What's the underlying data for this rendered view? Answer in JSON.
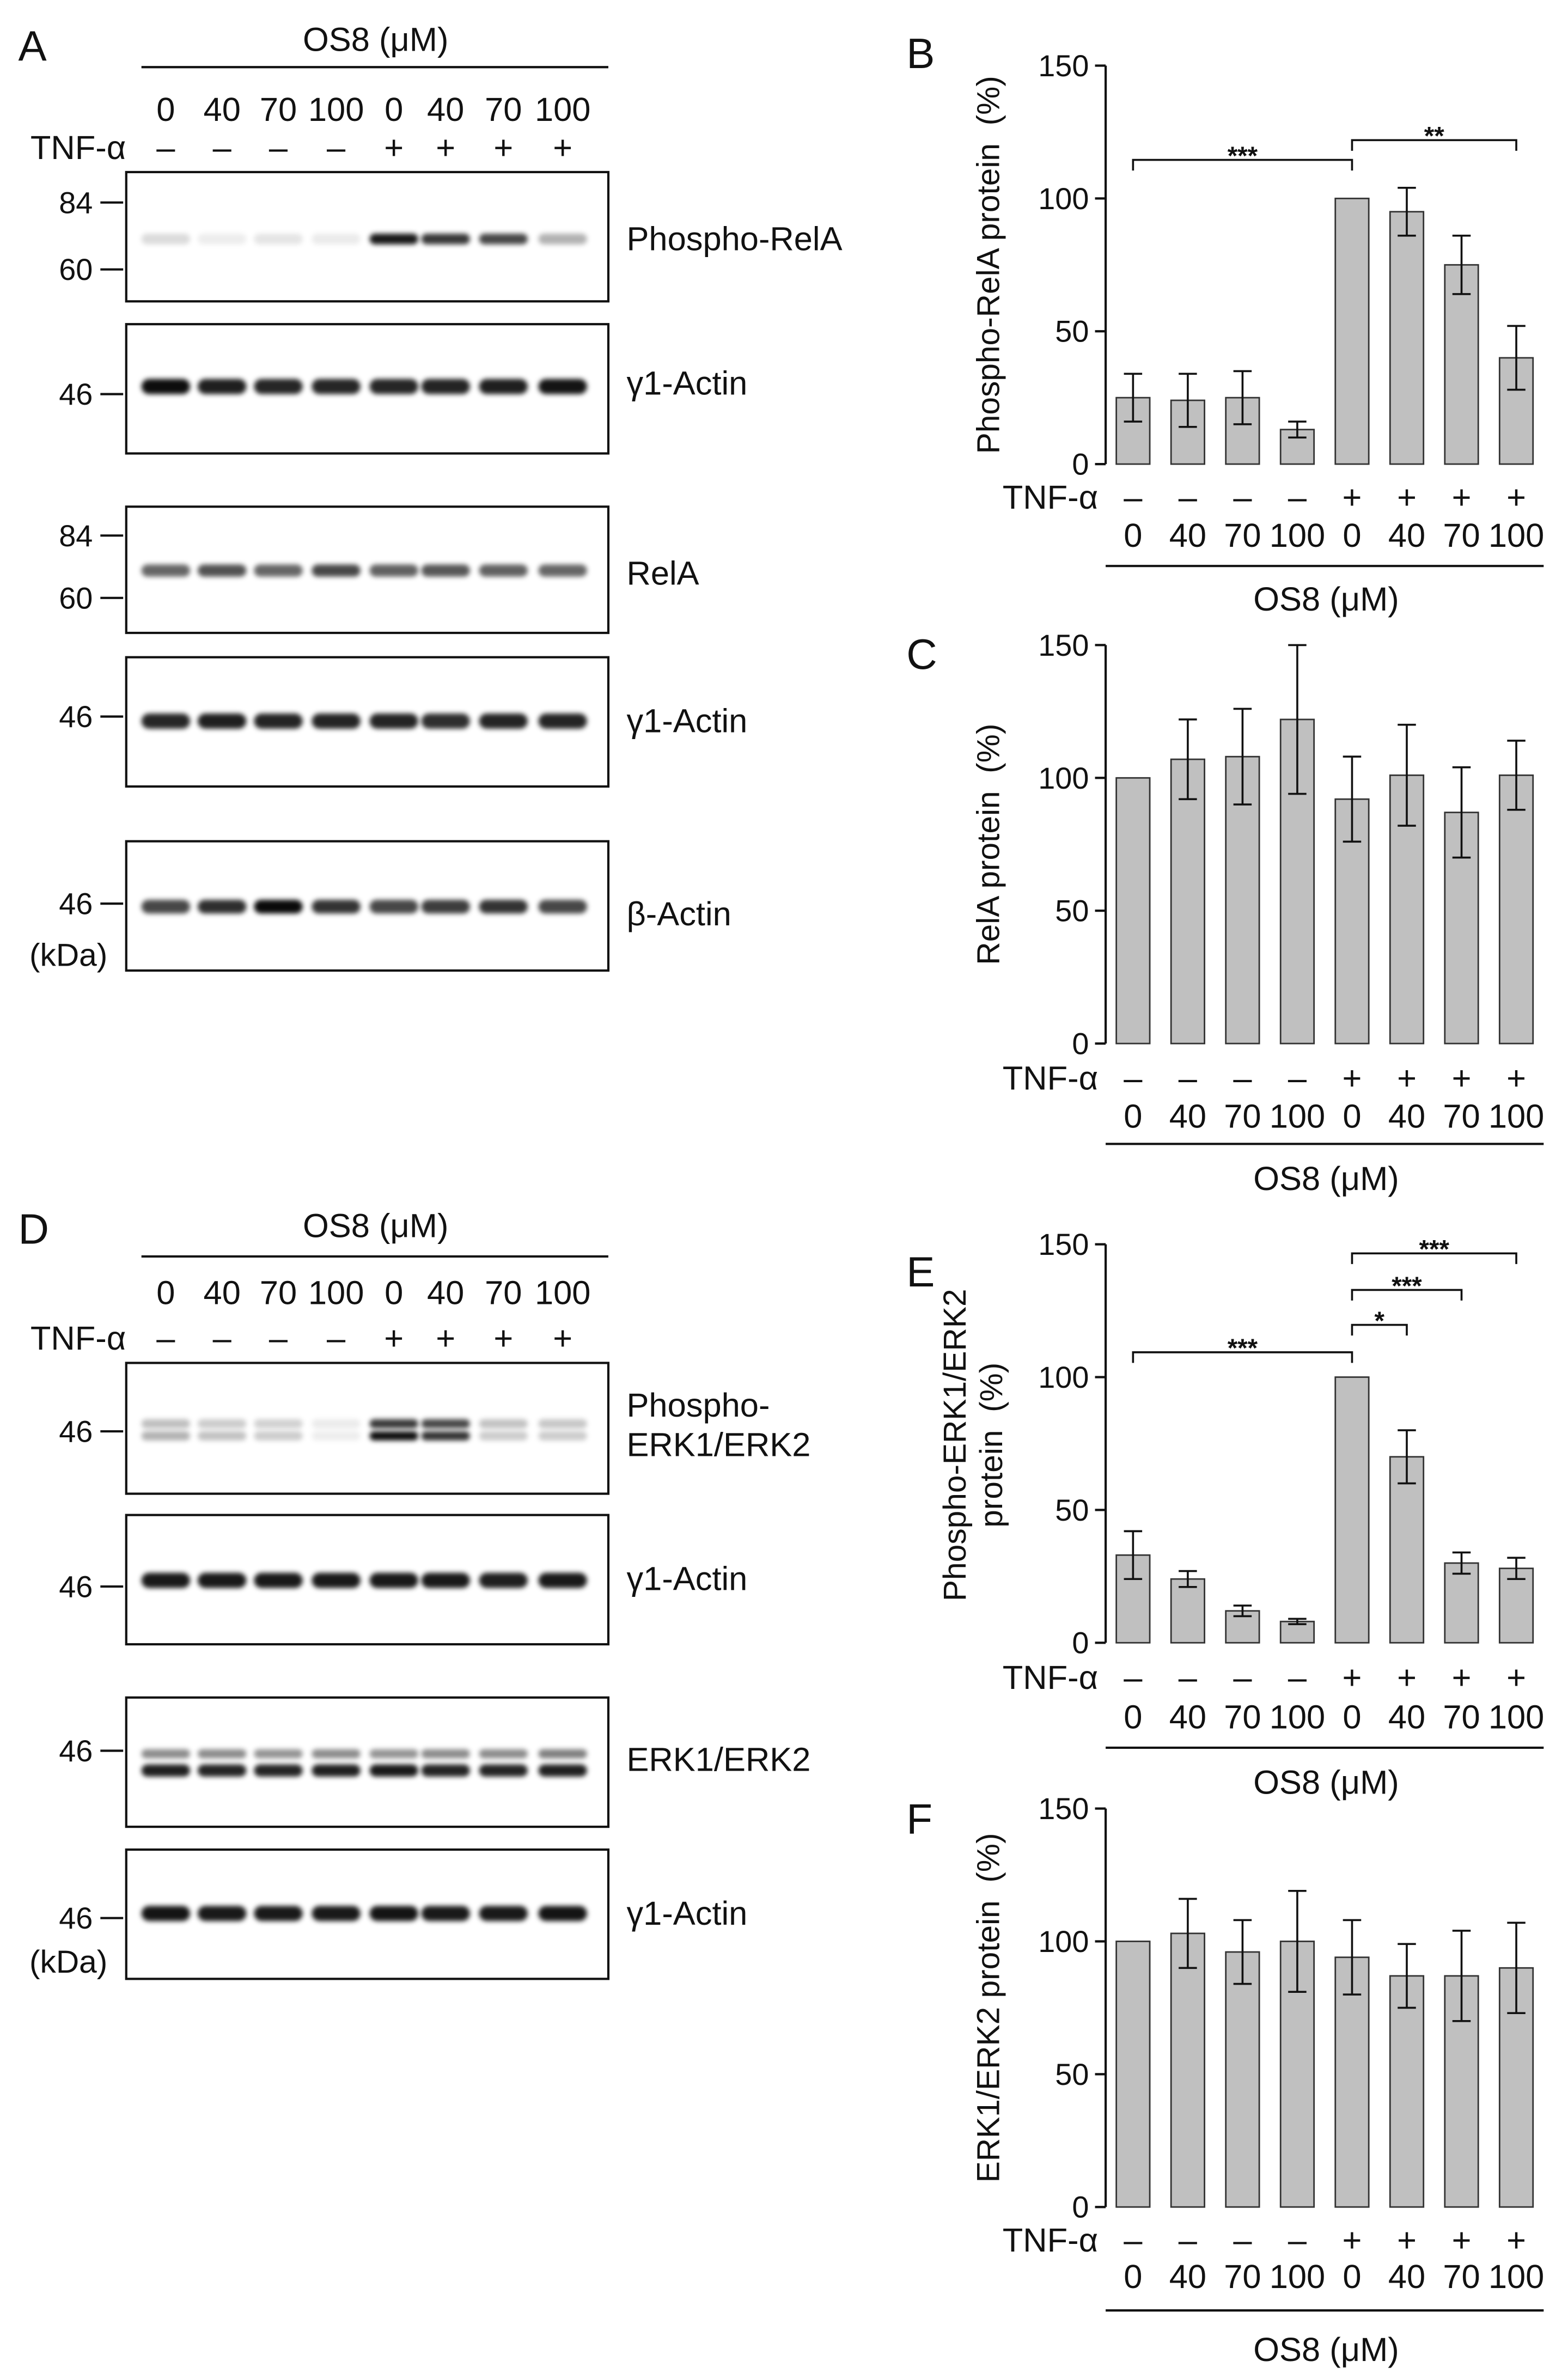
{
  "panels": {
    "A": {
      "letter": "A",
      "treatment_label": "OS8 (μM)",
      "doses": [
        "0",
        "40",
        "70",
        "100",
        "0",
        "40",
        "70",
        "100"
      ],
      "row_label": "TNF-α",
      "tnf": [
        "–",
        "–",
        "–",
        "–",
        "+",
        "+",
        "+",
        "+"
      ],
      "blots": [
        {
          "label_lines": [
            "Phospho-RelA"
          ],
          "markers": [
            "84",
            "60"
          ]
        },
        {
          "label_lines": [
            "γ1-Actin"
          ],
          "markers": [
            "46"
          ]
        },
        {
          "label_lines": [
            "RelA"
          ],
          "markers": [
            "84",
            "60"
          ]
        },
        {
          "label_lines": [
            "γ1-Actin"
          ],
          "markers": [
            "46"
          ]
        },
        {
          "label_lines": [
            "β-Actin"
          ],
          "markers": [
            "46"
          ]
        }
      ],
      "unit": "(kDa)"
    },
    "D": {
      "letter": "D",
      "treatment_label": "OS8 (μM)",
      "doses": [
        "0",
        "40",
        "70",
        "100",
        "0",
        "40",
        "70",
        "100"
      ],
      "row_label": "TNF-α",
      "tnf": [
        "–",
        "–",
        "–",
        "–",
        "+",
        "+",
        "+",
        "+"
      ],
      "blots": [
        {
          "label_lines": [
            "Phospho-",
            "ERK1/ERK2"
          ],
          "markers": [
            "46"
          ]
        },
        {
          "label_lines": [
            "γ1-Actin"
          ],
          "markers": [
            "46"
          ]
        },
        {
          "label_lines": [
            "ERK1/ERK2"
          ],
          "markers": [
            "46"
          ]
        },
        {
          "label_lines": [
            "γ1-Actin"
          ],
          "markers": [
            "46"
          ]
        }
      ],
      "unit": "(kDa)"
    }
  },
  "chart_data": [
    {
      "panel": "B",
      "type": "bar",
      "ylabel": [
        "Phospho-RelA protein  (%)"
      ],
      "ylim": [
        0,
        150
      ],
      "yticks": [
        0,
        50,
        100,
        150
      ],
      "row_label": "TNF-α",
      "tnf": [
        "–",
        "–",
        "–",
        "–",
        "+",
        "+",
        "+",
        "+"
      ],
      "x": [
        "0",
        "40",
        "70",
        "100",
        "0",
        "40",
        "70",
        "100"
      ],
      "xlabel": "OS8 (μM)",
      "values": [
        25,
        24,
        25,
        13,
        100,
        95,
        75,
        40
      ],
      "errors": [
        9,
        10,
        10,
        3,
        null,
        9,
        11,
        12
      ],
      "significance": [
        {
          "from": 0,
          "to": 4,
          "label": "***"
        },
        {
          "from": 4,
          "to": 7,
          "label": "**"
        }
      ],
      "bar_color": "#c0c0c0",
      "grid": false
    },
    {
      "panel": "C",
      "type": "bar",
      "ylabel": [
        "RelA protein  (%)"
      ],
      "ylim": [
        0,
        150
      ],
      "yticks": [
        0,
        50,
        100,
        150
      ],
      "row_label": "TNF-α",
      "tnf": [
        "–",
        "–",
        "–",
        "–",
        "+",
        "+",
        "+",
        "+"
      ],
      "x": [
        "0",
        "40",
        "70",
        "100",
        "0",
        "40",
        "70",
        "100"
      ],
      "xlabel": "OS8 (μM)",
      "values": [
        100,
        107,
        108,
        122,
        92,
        101,
        87,
        101
      ],
      "errors": [
        null,
        15,
        18,
        28,
        16,
        19,
        17,
        13
      ],
      "significance": [],
      "bar_color": "#c0c0c0",
      "grid": false
    },
    {
      "panel": "E",
      "type": "bar",
      "ylabel": [
        "Phospho-ERK1/ERK2",
        "protein  (%)"
      ],
      "ylim": [
        0,
        150
      ],
      "yticks": [
        0,
        50,
        100,
        150
      ],
      "row_label": "TNF-α",
      "tnf": [
        "–",
        "–",
        "–",
        "–",
        "+",
        "+",
        "+",
        "+"
      ],
      "x": [
        "0",
        "40",
        "70",
        "100",
        "0",
        "40",
        "70",
        "100"
      ],
      "xlabel": "OS8 (μM)",
      "values": [
        33,
        24,
        12,
        8,
        100,
        70,
        30,
        28
      ],
      "errors": [
        9,
        3,
        2,
        1,
        null,
        10,
        4,
        4
      ],
      "significance": [
        {
          "from": 0,
          "to": 4,
          "label": "***"
        },
        {
          "from": 4,
          "to": 5,
          "label": "*"
        },
        {
          "from": 4,
          "to": 6,
          "label": "***"
        },
        {
          "from": 4,
          "to": 7,
          "label": "***"
        }
      ],
      "bar_color": "#c0c0c0",
      "grid": false
    },
    {
      "panel": "F",
      "type": "bar",
      "ylabel": [
        "ERK1/ERK2 protein  (%)"
      ],
      "ylim": [
        0,
        150
      ],
      "yticks": [
        0,
        50,
        100,
        150
      ],
      "row_label": "TNF-α",
      "tnf": [
        "–",
        "–",
        "–",
        "–",
        "+",
        "+",
        "+",
        "+"
      ],
      "x": [
        "0",
        "40",
        "70",
        "100",
        "0",
        "40",
        "70",
        "100"
      ],
      "xlabel": "OS8 (μM)",
      "values": [
        100,
        103,
        96,
        100,
        94,
        87,
        87,
        90
      ],
      "errors": [
        null,
        13,
        12,
        19,
        14,
        12,
        17,
        17
      ],
      "significance": [],
      "bar_color": "#c0c0c0",
      "grid": false
    }
  ]
}
